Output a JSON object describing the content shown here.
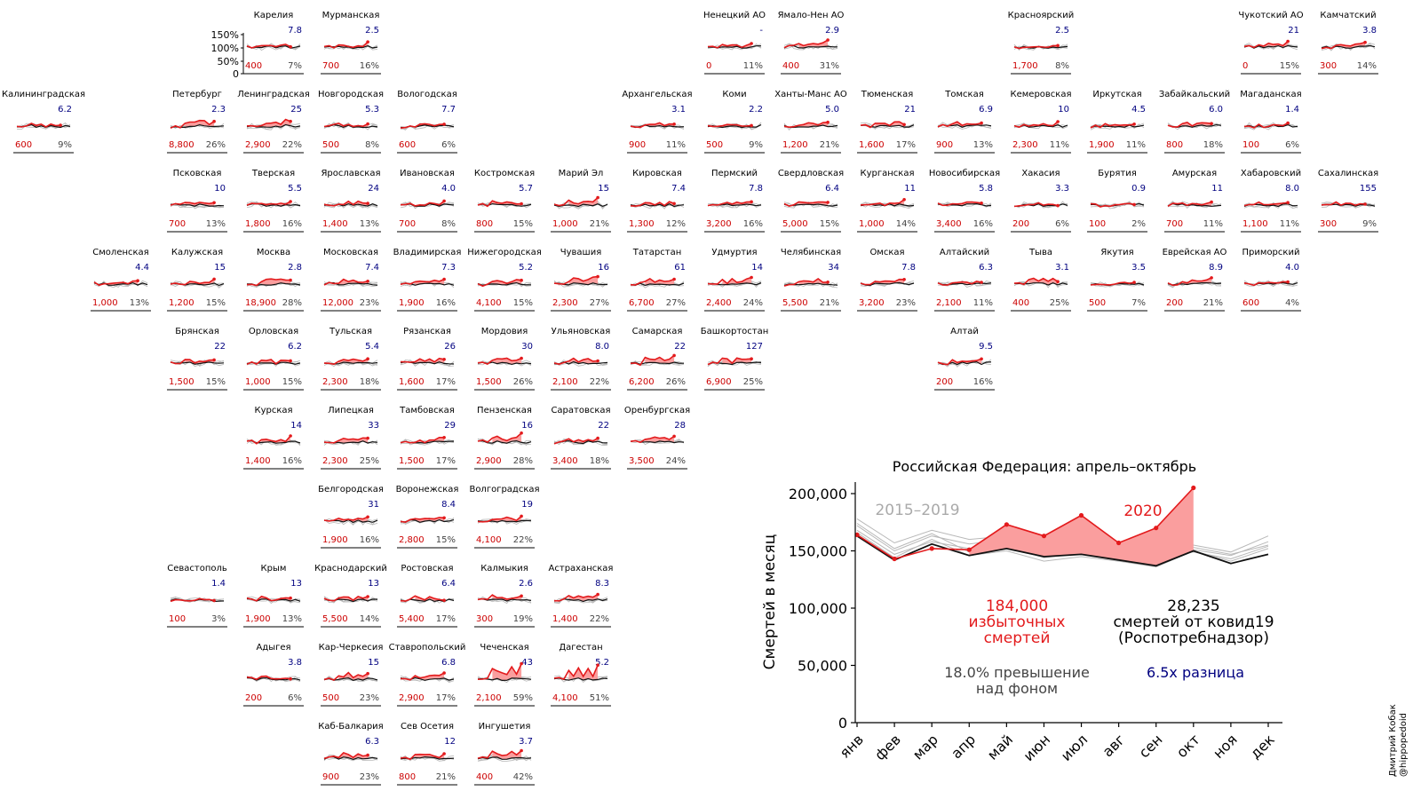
{
  "colors": {
    "excess_fill": "#fa9e9e",
    "excess_line": "#e31a1c",
    "baseline": "#111111",
    "history": "#b8b8b8",
    "covid_ratio": "#000080",
    "pop_value": "#cc0000",
    "pct_value": "#444444",
    "text": "#000000"
  },
  "mini_y_ticks": [
    "150%",
    "100%",
    "50%",
    "0"
  ],
  "regions": [
    {
      "name": "Карелия",
      "col": 3,
      "row": 0,
      "ratio": "7.8",
      "excess": "400",
      "pct": "7%"
    },
    {
      "name": "Мурманская",
      "col": 4,
      "row": 0,
      "ratio": "2.5",
      "excess": "700",
      "pct": "16%"
    },
    {
      "name": "Ненецкий АО",
      "col": 9,
      "row": 0,
      "ratio": "-",
      "excess": "0",
      "pct": "11%"
    },
    {
      "name": "Ямало-Нен АО",
      "col": 10,
      "row": 0,
      "ratio": "2.9",
      "excess": "400",
      "pct": "31%"
    },
    {
      "name": "Красноярский",
      "col": 13,
      "row": 0,
      "ratio": "2.5",
      "excess": "1,700",
      "pct": "8%"
    },
    {
      "name": "Чукотский АО",
      "col": 16,
      "row": 0,
      "ratio": "21",
      "excess": "0",
      "pct": "15%"
    },
    {
      "name": "Камчатский",
      "col": 17,
      "row": 0,
      "ratio": "3.8",
      "excess": "300",
      "pct": "14%"
    },
    {
      "name": "Калининградская",
      "col": 0,
      "row": 1,
      "ratio": "6.2",
      "excess": "600",
      "pct": "9%"
    },
    {
      "name": "Петербург",
      "col": 2,
      "row": 1,
      "ratio": "2.3",
      "excess": "8,800",
      "pct": "26%"
    },
    {
      "name": "Ленинградская",
      "col": 3,
      "row": 1,
      "ratio": "25",
      "excess": "2,900",
      "pct": "22%"
    },
    {
      "name": "Новгородская",
      "col": 4,
      "row": 1,
      "ratio": "5.3",
      "excess": "500",
      "pct": "8%"
    },
    {
      "name": "Вологодская",
      "col": 5,
      "row": 1,
      "ratio": "7.7",
      "excess": "600",
      "pct": "6%"
    },
    {
      "name": "Архангельская",
      "col": 8,
      "row": 1,
      "ratio": "3.1",
      "excess": "900",
      "pct": "11%"
    },
    {
      "name": "Коми",
      "col": 9,
      "row": 1,
      "ratio": "2.2",
      "excess": "500",
      "pct": "9%"
    },
    {
      "name": "Ханты-Манс АО",
      "col": 10,
      "row": 1,
      "ratio": "5.0",
      "excess": "1,200",
      "pct": "21%"
    },
    {
      "name": "Тюменская",
      "col": 11,
      "row": 1,
      "ratio": "21",
      "excess": "1,600",
      "pct": "17%"
    },
    {
      "name": "Томская",
      "col": 12,
      "row": 1,
      "ratio": "6.9",
      "excess": "900",
      "pct": "13%"
    },
    {
      "name": "Кемеровская",
      "col": 13,
      "row": 1,
      "ratio": "10",
      "excess": "2,300",
      "pct": "11%"
    },
    {
      "name": "Иркутская",
      "col": 14,
      "row": 1,
      "ratio": "4.5",
      "excess": "1,900",
      "pct": "11%"
    },
    {
      "name": "Забайкальский",
      "col": 15,
      "row": 1,
      "ratio": "6.0",
      "excess": "800",
      "pct": "18%"
    },
    {
      "name": "Магаданская",
      "col": 16,
      "row": 1,
      "ratio": "1.4",
      "excess": "100",
      "pct": "6%"
    },
    {
      "name": "Псковская",
      "col": 2,
      "row": 2,
      "ratio": "10",
      "excess": "700",
      "pct": "13%"
    },
    {
      "name": "Тверская",
      "col": 3,
      "row": 2,
      "ratio": "5.5",
      "excess": "1,800",
      "pct": "16%"
    },
    {
      "name": "Ярославская",
      "col": 4,
      "row": 2,
      "ratio": "24",
      "excess": "1,400",
      "pct": "13%"
    },
    {
      "name": "Ивановская",
      "col": 5,
      "row": 2,
      "ratio": "4.0",
      "excess": "700",
      "pct": "8%"
    },
    {
      "name": "Костромская",
      "col": 6,
      "row": 2,
      "ratio": "5.7",
      "excess": "800",
      "pct": "15%"
    },
    {
      "name": "Марий Эл",
      "col": 7,
      "row": 2,
      "ratio": "15",
      "excess": "1,000",
      "pct": "21%"
    },
    {
      "name": "Кировская",
      "col": 8,
      "row": 2,
      "ratio": "7.4",
      "excess": "1,300",
      "pct": "12%"
    },
    {
      "name": "Пермский",
      "col": 9,
      "row": 2,
      "ratio": "7.8",
      "excess": "3,200",
      "pct": "16%"
    },
    {
      "name": "Свердловская",
      "col": 10,
      "row": 2,
      "ratio": "6.4",
      "excess": "5,000",
      "pct": "15%"
    },
    {
      "name": "Курганская",
      "col": 11,
      "row": 2,
      "ratio": "11",
      "excess": "1,000",
      "pct": "14%"
    },
    {
      "name": "Новосибирская",
      "col": 12,
      "row": 2,
      "ratio": "5.8",
      "excess": "3,400",
      "pct": "16%"
    },
    {
      "name": "Хакасия",
      "col": 13,
      "row": 2,
      "ratio": "3.3",
      "excess": "200",
      "pct": "6%"
    },
    {
      "name": "Бурятия",
      "col": 14,
      "row": 2,
      "ratio": "0.9",
      "excess": "100",
      "pct": "2%"
    },
    {
      "name": "Амурская",
      "col": 15,
      "row": 2,
      "ratio": "11",
      "excess": "700",
      "pct": "11%"
    },
    {
      "name": "Хабаровский",
      "col": 16,
      "row": 2,
      "ratio": "8.0",
      "excess": "1,100",
      "pct": "11%"
    },
    {
      "name": "Сахалинская",
      "col": 17,
      "row": 2,
      "ratio": "155",
      "excess": "300",
      "pct": "9%"
    },
    {
      "name": "Смоленская",
      "col": 1,
      "row": 3,
      "ratio": "4.4",
      "excess": "1,000",
      "pct": "13%"
    },
    {
      "name": "Калужская",
      "col": 2,
      "row": 3,
      "ratio": "15",
      "excess": "1,200",
      "pct": "15%"
    },
    {
      "name": "Москва",
      "col": 3,
      "row": 3,
      "ratio": "2.8",
      "excess": "18,900",
      "pct": "28%"
    },
    {
      "name": "Московская",
      "col": 4,
      "row": 3,
      "ratio": "7.4",
      "excess": "12,000",
      "pct": "23%"
    },
    {
      "name": "Владимирская",
      "col": 5,
      "row": 3,
      "ratio": "7.3",
      "excess": "1,900",
      "pct": "16%"
    },
    {
      "name": "Нижегородская",
      "col": 6,
      "row": 3,
      "ratio": "5.2",
      "excess": "4,100",
      "pct": "15%"
    },
    {
      "name": "Чувашия",
      "col": 7,
      "row": 3,
      "ratio": "16",
      "excess": "2,300",
      "pct": "27%"
    },
    {
      "name": "Татарстан",
      "col": 8,
      "row": 3,
      "ratio": "61",
      "excess": "6,700",
      "pct": "27%"
    },
    {
      "name": "Удмуртия",
      "col": 9,
      "row": 3,
      "ratio": "14",
      "excess": "2,400",
      "pct": "24%"
    },
    {
      "name": "Челябинская",
      "col": 10,
      "row": 3,
      "ratio": "34",
      "excess": "5,500",
      "pct": "21%"
    },
    {
      "name": "Омская",
      "col": 11,
      "row": 3,
      "ratio": "7.8",
      "excess": "3,200",
      "pct": "23%"
    },
    {
      "name": "Алтайский",
      "col": 12,
      "row": 3,
      "ratio": "6.3",
      "excess": "2,100",
      "pct": "11%"
    },
    {
      "name": "Тыва",
      "col": 13,
      "row": 3,
      "ratio": "3.1",
      "excess": "400",
      "pct": "25%"
    },
    {
      "name": "Якутия",
      "col": 14,
      "row": 3,
      "ratio": "3.5",
      "excess": "500",
      "pct": "7%"
    },
    {
      "name": "Еврейская АО",
      "col": 15,
      "row": 3,
      "ratio": "8.9",
      "excess": "200",
      "pct": "21%"
    },
    {
      "name": "Приморский",
      "col": 16,
      "row": 3,
      "ratio": "4.0",
      "excess": "600",
      "pct": "4%"
    },
    {
      "name": "Брянская",
      "col": 2,
      "row": 4,
      "ratio": "22",
      "excess": "1,500",
      "pct": "15%"
    },
    {
      "name": "Орловская",
      "col": 3,
      "row": 4,
      "ratio": "6.2",
      "excess": "1,000",
      "pct": "15%"
    },
    {
      "name": "Тульская",
      "col": 4,
      "row": 4,
      "ratio": "5.4",
      "excess": "2,300",
      "pct": "18%"
    },
    {
      "name": "Рязанская",
      "col": 5,
      "row": 4,
      "ratio": "26",
      "excess": "1,600",
      "pct": "17%"
    },
    {
      "name": "Мордовия",
      "col": 6,
      "row": 4,
      "ratio": "30",
      "excess": "1,500",
      "pct": "26%"
    },
    {
      "name": "Ульяновская",
      "col": 7,
      "row": 4,
      "ratio": "8.0",
      "excess": "2,100",
      "pct": "22%"
    },
    {
      "name": "Самарская",
      "col": 8,
      "row": 4,
      "ratio": "22",
      "excess": "6,200",
      "pct": "26%"
    },
    {
      "name": "Башкортостан",
      "col": 9,
      "row": 4,
      "ratio": "127",
      "excess": "6,900",
      "pct": "25%"
    },
    {
      "name": "Алтай",
      "col": 12,
      "row": 4,
      "ratio": "9.5",
      "excess": "200",
      "pct": "16%"
    },
    {
      "name": "Курская",
      "col": 3,
      "row": 5,
      "ratio": "14",
      "excess": "1,400",
      "pct": "16%"
    },
    {
      "name": "Липецкая",
      "col": 4,
      "row": 5,
      "ratio": "33",
      "excess": "2,300",
      "pct": "25%"
    },
    {
      "name": "Тамбовская",
      "col": 5,
      "row": 5,
      "ratio": "29",
      "excess": "1,500",
      "pct": "17%"
    },
    {
      "name": "Пензенская",
      "col": 6,
      "row": 5,
      "ratio": "16",
      "excess": "2,900",
      "pct": "28%"
    },
    {
      "name": "Саратовская",
      "col": 7,
      "row": 5,
      "ratio": "22",
      "excess": "3,400",
      "pct": "18%"
    },
    {
      "name": "Оренбургская",
      "col": 8,
      "row": 5,
      "ratio": "28",
      "excess": "3,500",
      "pct": "24%"
    },
    {
      "name": "Белгородская",
      "col": 4,
      "row": 6,
      "ratio": "31",
      "excess": "1,900",
      "pct": "16%"
    },
    {
      "name": "Воронежская",
      "col": 5,
      "row": 6,
      "ratio": "8.4",
      "excess": "2,800",
      "pct": "15%"
    },
    {
      "name": "Волгоградская",
      "col": 6,
      "row": 6,
      "ratio": "19",
      "excess": "4,100",
      "pct": "22%"
    },
    {
      "name": "Севастополь",
      "col": 2,
      "row": 7,
      "ratio": "1.4",
      "excess": "100",
      "pct": "3%"
    },
    {
      "name": "Крым",
      "col": 3,
      "row": 7,
      "ratio": "13",
      "excess": "1,900",
      "pct": "13%"
    },
    {
      "name": "Краснодарский",
      "col": 4,
      "row": 7,
      "ratio": "13",
      "excess": "5,500",
      "pct": "14%"
    },
    {
      "name": "Ростовская",
      "col": 5,
      "row": 7,
      "ratio": "6.4",
      "excess": "5,400",
      "pct": "17%"
    },
    {
      "name": "Калмыкия",
      "col": 6,
      "row": 7,
      "ratio": "2.6",
      "excess": "300",
      "pct": "19%"
    },
    {
      "name": "Астраханская",
      "col": 7,
      "row": 7,
      "ratio": "8.3",
      "excess": "1,400",
      "pct": "22%"
    },
    {
      "name": "Адыгея",
      "col": 3,
      "row": 8,
      "ratio": "3.8",
      "excess": "200",
      "pct": "6%"
    },
    {
      "name": "Кар-Черкесия",
      "col": 4,
      "row": 8,
      "ratio": "15",
      "excess": "500",
      "pct": "23%"
    },
    {
      "name": "Ставропольский",
      "col": 5,
      "row": 8,
      "ratio": "6.8",
      "excess": "2,900",
      "pct": "17%"
    },
    {
      "name": "Чеченская",
      "col": 6,
      "row": 8,
      "ratio": "43",
      "excess": "2,100",
      "pct": "59%"
    },
    {
      "name": "Дагестан",
      "col": 7,
      "row": 8,
      "ratio": "5.2",
      "excess": "4,100",
      "pct": "51%"
    },
    {
      "name": "Каб-Балкария",
      "col": 4,
      "row": 9,
      "ratio": "6.3",
      "excess": "900",
      "pct": "23%"
    },
    {
      "name": "Сев Осетия",
      "col": 5,
      "row": 9,
      "ratio": "12",
      "excess": "800",
      "pct": "21%"
    },
    {
      "name": "Ингушетия",
      "col": 6,
      "row": 9,
      "ratio": "3.7",
      "excess": "400",
      "pct": "42%"
    }
  ],
  "chart_data": {
    "type": "line",
    "title": "Российская Федерация: апрель–октябрь",
    "ylabel": "Смертей в месяц",
    "xlabel": "",
    "categories": [
      "янв",
      "фев",
      "мар",
      "апр",
      "май",
      "июн",
      "июл",
      "авг",
      "сен",
      "окт",
      "ноя",
      "дек"
    ],
    "ylim": [
      0,
      210000
    ],
    "y_ticks": [
      0,
      50000,
      100000,
      150000,
      200000
    ],
    "y_tick_labels": [
      "0",
      "50,000",
      "100,000",
      "150,000",
      "200,000"
    ],
    "series": [
      {
        "name": "2020",
        "values": [
          164000,
          143000,
          152000,
          151000,
          173000,
          163000,
          181000,
          157000,
          170000,
          205000,
          null,
          null
        ]
      },
      {
        "name": "2015–2019",
        "values": [
          163000,
          142000,
          156000,
          146000,
          152000,
          145000,
          147000,
          142000,
          137000,
          150000,
          139000,
          147000
        ]
      }
    ],
    "history_series": [
      [
        178000,
        157000,
        168000,
        160000,
        163000,
        150000,
        155000,
        148000,
        143000,
        155000,
        149000,
        163000
      ],
      [
        172000,
        150000,
        163000,
        156000,
        160000,
        155000,
        149000,
        146000,
        141000,
        151000,
        146000,
        158000
      ],
      [
        168000,
        147000,
        158000,
        152000,
        155000,
        152000,
        156000,
        152000,
        145000,
        149000,
        143000,
        154000
      ],
      [
        174000,
        152000,
        165000,
        149000,
        154000,
        144000,
        148000,
        144000,
        139000,
        153000,
        147000,
        155000
      ],
      [
        166000,
        144000,
        160000,
        146000,
        150000,
        141000,
        145000,
        141000,
        136000,
        150000,
        141000,
        152000
      ]
    ],
    "annotations": {
      "history_label": "2015–2019",
      "current_label": "2020",
      "excess_value": "184,000",
      "excess_line2": "избыточных",
      "excess_line3": "смертей",
      "covid_value": "28,235",
      "covid_line2": "смертей от ковид19",
      "covid_line3": "(Роспотребнадзор)",
      "pct_line1": "18.0% превышение",
      "pct_line2": "над фоном",
      "ratio_text": "6.5x разница"
    }
  },
  "credit": {
    "line1": "Дмитрий Кобак",
    "line2": "@hippopedoid"
  }
}
